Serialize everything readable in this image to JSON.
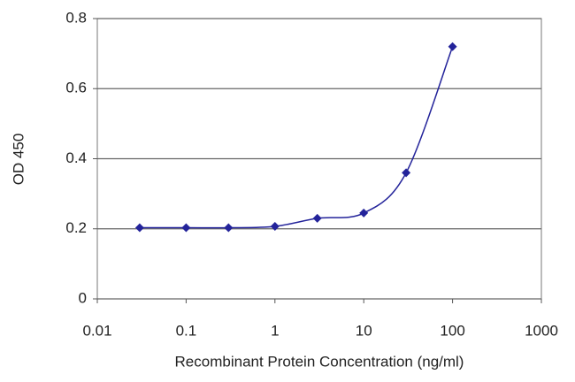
{
  "chart_data": {
    "type": "line",
    "xlabel": "Recombinant Protein Concentration (ng/ml)",
    "ylabel": "OD 450",
    "x": [
      0.03,
      0.1,
      0.3,
      1,
      3,
      10,
      30,
      100
    ],
    "values": [
      0.203,
      0.203,
      0.203,
      0.207,
      0.23,
      0.245,
      0.36,
      0.72
    ],
    "color": "#23239a",
    "xscale": "log",
    "xlim": [
      0.01,
      1000
    ],
    "xticks": [
      0.01,
      0.1,
      1,
      10,
      100,
      1000
    ],
    "ylim": [
      0,
      0.8
    ],
    "yticks": [
      0,
      0.2,
      0.4,
      0.6,
      0.8
    ],
    "grid": true
  }
}
